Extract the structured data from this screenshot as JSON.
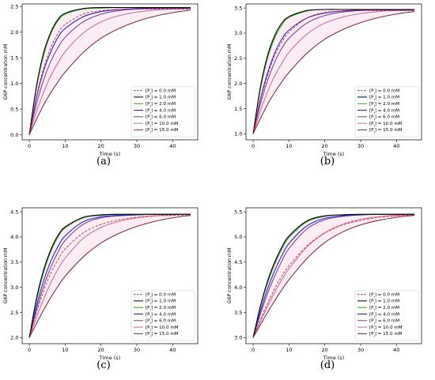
{
  "chart_data": [
    {
      "panel": "(a)",
      "type": "line",
      "xlabel": "Time (s)",
      "ylabel": "G6P concentration mM",
      "xlim": [
        -2,
        47
      ],
      "ylim": [
        -0.1,
        2.55
      ],
      "xticks": [
        0,
        10,
        20,
        30,
        40
      ],
      "yticks": [
        0.0,
        0.5,
        1.0,
        1.5,
        2.0,
        2.5
      ],
      "ytick_labels": [
        "0.0",
        "0.5",
        "1.0",
        "1.5",
        "2.0",
        "2.5"
      ],
      "legend_position": "lower-right",
      "series": [
        {
          "name": "[P_i] = 0.0 mM",
          "color": "#d62728",
          "dash": true,
          "x": [
            0,
            2,
            4,
            6,
            8,
            10,
            15,
            20,
            25,
            30,
            35,
            40,
            45
          ],
          "y": [
            0.0,
            0.75,
            1.3,
            1.7,
            1.98,
            2.15,
            2.35,
            2.42,
            2.44,
            2.45,
            2.45,
            2.45,
            2.45
          ]
        },
        {
          "name": "[P_i] = 1.0 mM",
          "color": "#000000",
          "dash": false,
          "x": [
            0,
            2,
            4,
            6,
            8,
            10,
            15,
            20,
            25,
            30,
            35,
            40,
            45
          ],
          "y": [
            0.0,
            0.95,
            1.6,
            2.0,
            2.25,
            2.37,
            2.46,
            2.48,
            2.48,
            2.48,
            2.48,
            2.48,
            2.48
          ]
        },
        {
          "name": "[P_i] = 2.0 mM",
          "color": "#2ca02c",
          "dash": false,
          "x": [
            0,
            2,
            4,
            6,
            8,
            10,
            15,
            20,
            25,
            30,
            35,
            40,
            45
          ],
          "y": [
            0.0,
            0.92,
            1.55,
            1.97,
            2.22,
            2.35,
            2.45,
            2.47,
            2.48,
            2.48,
            2.48,
            2.48,
            2.48
          ]
        },
        {
          "name": "[P_i] = 4.0 mM",
          "color": "#1f1fd6",
          "dash": false,
          "x": [
            0,
            2,
            4,
            6,
            8,
            10,
            15,
            20,
            25,
            30,
            35,
            40,
            45
          ],
          "y": [
            0.0,
            0.72,
            1.25,
            1.62,
            1.9,
            2.07,
            2.3,
            2.4,
            2.44,
            2.46,
            2.47,
            2.47,
            2.47
          ]
        },
        {
          "name": "[P_i] = 6.0 mM",
          "color": "#7b3fa0",
          "dash": false,
          "x": [
            0,
            2,
            4,
            6,
            8,
            10,
            15,
            20,
            25,
            30,
            35,
            40,
            45
          ],
          "y": [
            0.0,
            0.6,
            1.07,
            1.43,
            1.7,
            1.9,
            2.2,
            2.35,
            2.42,
            2.45,
            2.46,
            2.47,
            2.47
          ]
        },
        {
          "name": "[P_i] = 10.0 mM",
          "color": "#d06a9a",
          "dash": false,
          "x": [
            0,
            2,
            4,
            6,
            8,
            10,
            15,
            20,
            25,
            30,
            35,
            40,
            45
          ],
          "y": [
            0.0,
            0.45,
            0.83,
            1.15,
            1.4,
            1.62,
            1.98,
            2.2,
            2.32,
            2.39,
            2.43,
            2.45,
            2.46
          ]
        },
        {
          "name": "[P_i] = 15.0 mM",
          "color": "#8b2a3a",
          "dash": false,
          "x": [
            0,
            2,
            4,
            6,
            8,
            10,
            15,
            20,
            25,
            30,
            35,
            40,
            45
          ],
          "y": [
            0.0,
            0.3,
            0.58,
            0.82,
            1.03,
            1.22,
            1.6,
            1.88,
            2.07,
            2.21,
            2.31,
            2.38,
            2.43
          ]
        }
      ]
    },
    {
      "panel": "(b)",
      "type": "line",
      "xlabel": "Time (s)",
      "ylabel": "G6P concentration mM",
      "xlim": [
        -2,
        47
      ],
      "ylim": [
        0.88,
        3.58
      ],
      "xticks": [
        0,
        10,
        20,
        30,
        40
      ],
      "yticks": [
        1.0,
        1.5,
        2.0,
        2.5,
        3.0,
        3.5
      ],
      "ytick_labels": [
        "1.0",
        "1.5",
        "2.0",
        "2.5",
        "3.0",
        "3.5"
      ],
      "legend_position": "lower-right",
      "series": [
        {
          "name": "[P_i] = 0.0 mM",
          "color": "#d62728",
          "dash": true,
          "x": [
            0,
            2,
            4,
            6,
            8,
            10,
            15,
            20,
            25,
            30,
            35,
            40,
            45
          ],
          "y": [
            1.0,
            1.65,
            2.15,
            2.55,
            2.82,
            3.02,
            3.3,
            3.41,
            3.44,
            3.45,
            3.45,
            3.45,
            3.45
          ]
        },
        {
          "name": "[P_i] = 1.0 mM",
          "color": "#000000",
          "dash": false,
          "x": [
            0,
            2,
            4,
            6,
            8,
            10,
            15,
            20,
            25,
            30,
            35,
            40,
            45
          ],
          "y": [
            1.0,
            1.92,
            2.55,
            2.95,
            3.2,
            3.33,
            3.45,
            3.47,
            3.47,
            3.47,
            3.47,
            3.47,
            3.47
          ]
        },
        {
          "name": "[P_i] = 2.0 mM",
          "color": "#2ca02c",
          "dash": false,
          "x": [
            0,
            2,
            4,
            6,
            8,
            10,
            15,
            20,
            25,
            30,
            35,
            40,
            45
          ],
          "y": [
            1.0,
            1.88,
            2.5,
            2.9,
            3.16,
            3.31,
            3.44,
            3.47,
            3.47,
            3.47,
            3.47,
            3.47,
            3.47
          ]
        },
        {
          "name": "[P_i] = 4.0 mM",
          "color": "#1f1fd6",
          "dash": false,
          "x": [
            0,
            2,
            4,
            6,
            8,
            10,
            15,
            20,
            25,
            30,
            35,
            40,
            45
          ],
          "y": [
            1.0,
            1.68,
            2.2,
            2.6,
            2.88,
            3.06,
            3.3,
            3.4,
            3.44,
            3.46,
            3.46,
            3.46,
            3.46
          ]
        },
        {
          "name": "[P_i] = 6.0 mM",
          "color": "#7b3fa0",
          "dash": false,
          "x": [
            0,
            2,
            4,
            6,
            8,
            10,
            15,
            20,
            25,
            30,
            35,
            40,
            45
          ],
          "y": [
            1.0,
            1.58,
            2.05,
            2.42,
            2.7,
            2.9,
            3.2,
            3.35,
            3.42,
            3.45,
            3.46,
            3.46,
            3.46
          ]
        },
        {
          "name": "[P_i] = 10.0 mM",
          "color": "#d06a9a",
          "dash": false,
          "x": [
            0,
            2,
            4,
            6,
            8,
            10,
            15,
            20,
            25,
            30,
            35,
            40,
            45
          ],
          "y": [
            1.0,
            1.45,
            1.83,
            2.15,
            2.4,
            2.62,
            2.98,
            3.2,
            3.32,
            3.39,
            3.43,
            3.45,
            3.46
          ]
        },
        {
          "name": "[P_i] = 15.0 mM",
          "color": "#8b2a3a",
          "dash": false,
          "x": [
            0,
            2,
            4,
            6,
            8,
            10,
            15,
            20,
            25,
            30,
            35,
            40,
            45
          ],
          "y": [
            1.0,
            1.3,
            1.58,
            1.82,
            2.03,
            2.22,
            2.6,
            2.88,
            3.07,
            3.21,
            3.31,
            3.38,
            3.43
          ]
        }
      ]
    },
    {
      "panel": "(c)",
      "type": "line",
      "xlabel": "Time (s)",
      "ylabel": "G6P concentration mM",
      "xlim": [
        -2,
        47
      ],
      "ylim": [
        1.88,
        4.58
      ],
      "xticks": [
        0,
        10,
        20,
        30,
        40
      ],
      "yticks": [
        2.0,
        2.5,
        3.0,
        3.5,
        4.0,
        4.5
      ],
      "ytick_labels": [
        "2.0",
        "2.5",
        "3.0",
        "3.5",
        "4.0",
        "4.5"
      ],
      "legend_position": "lower-right",
      "series": [
        {
          "name": "[P_i] = 0.0 mM",
          "color": "#d62728",
          "dash": true,
          "x": [
            0,
            2,
            4,
            6,
            8,
            10,
            15,
            20,
            25,
            30,
            35,
            40,
            45
          ],
          "y": [
            2.0,
            2.5,
            2.93,
            3.28,
            3.55,
            3.76,
            4.08,
            4.25,
            4.34,
            4.39,
            4.42,
            4.43,
            4.44
          ]
        },
        {
          "name": "[P_i] = 1.0 mM",
          "color": "#000000",
          "dash": false,
          "x": [
            0,
            2,
            4,
            6,
            8,
            10,
            15,
            20,
            25,
            30,
            35,
            40,
            45
          ],
          "y": [
            2.0,
            2.78,
            3.35,
            3.75,
            4.03,
            4.2,
            4.39,
            4.44,
            4.45,
            4.45,
            4.45,
            4.45,
            4.45
          ]
        },
        {
          "name": "[P_i] = 2.0 mM",
          "color": "#2ca02c",
          "dash": false,
          "x": [
            0,
            2,
            4,
            6,
            8,
            10,
            15,
            20,
            25,
            30,
            35,
            40,
            45
          ],
          "y": [
            2.0,
            2.74,
            3.3,
            3.71,
            4.0,
            4.18,
            4.38,
            4.43,
            4.45,
            4.45,
            4.45,
            4.45,
            4.45
          ]
        },
        {
          "name": "[P_i] = 4.0 mM",
          "color": "#1f1fd6",
          "dash": false,
          "x": [
            0,
            2,
            4,
            6,
            8,
            10,
            15,
            20,
            25,
            30,
            35,
            40,
            45
          ],
          "y": [
            2.0,
            2.63,
            3.13,
            3.52,
            3.81,
            4.02,
            4.3,
            4.4,
            4.43,
            4.44,
            4.45,
            4.45,
            4.45
          ]
        },
        {
          "name": "[P_i] = 6.0 mM",
          "color": "#7b3fa0",
          "dash": false,
          "x": [
            0,
            2,
            4,
            6,
            8,
            10,
            15,
            20,
            25,
            30,
            35,
            40,
            45
          ],
          "y": [
            2.0,
            2.55,
            3.02,
            3.4,
            3.7,
            3.93,
            4.25,
            4.38,
            4.42,
            4.44,
            4.45,
            4.45,
            4.45
          ]
        },
        {
          "name": "[P_i] = 10.0 mM",
          "color": "#d06a9a",
          "dash": false,
          "x": [
            0,
            2,
            4,
            6,
            8,
            10,
            15,
            20,
            25,
            30,
            35,
            40,
            45
          ],
          "y": [
            2.0,
            2.4,
            2.77,
            3.09,
            3.36,
            3.58,
            3.97,
            4.19,
            4.31,
            4.38,
            4.42,
            4.44,
            4.45
          ]
        },
        {
          "name": "[P_i] = 15.0 mM",
          "color": "#8b2a3a",
          "dash": false,
          "x": [
            0,
            2,
            4,
            6,
            8,
            10,
            15,
            20,
            25,
            30,
            35,
            40,
            45
          ],
          "y": [
            2.0,
            2.28,
            2.55,
            2.8,
            3.02,
            3.22,
            3.6,
            3.88,
            4.07,
            4.21,
            4.31,
            4.38,
            4.43
          ]
        }
      ]
    },
    {
      "panel": "(d)",
      "type": "line",
      "xlabel": "Time (s)",
      "ylabel": "G6P concentration mM",
      "xlim": [
        -2,
        47
      ],
      "ylim": [
        2.88,
        5.58
      ],
      "xticks": [
        0,
        10,
        20,
        30,
        40
      ],
      "yticks": [
        3.0,
        3.5,
        4.0,
        4.5,
        5.0,
        5.5
      ],
      "ytick_labels": [
        "3.0",
        "3.5",
        "4.0",
        "4.5",
        "5.0",
        "5.5"
      ],
      "legend_position": "lower-right",
      "series": [
        {
          "name": "[P_i] = 0.0 mM",
          "color": "#d62728",
          "dash": true,
          "x": [
            0,
            2,
            4,
            6,
            8,
            10,
            15,
            20,
            25,
            30,
            35,
            40,
            45
          ],
          "y": [
            3.0,
            3.35,
            3.68,
            3.97,
            4.22,
            4.43,
            4.82,
            5.08,
            5.24,
            5.33,
            5.39,
            5.42,
            5.44
          ]
        },
        {
          "name": "[P_i] = 1.0 mM",
          "color": "#000000",
          "dash": false,
          "x": [
            0,
            2,
            4,
            6,
            8,
            10,
            15,
            20,
            25,
            30,
            35,
            40,
            45
          ],
          "y": [
            3.0,
            3.62,
            4.12,
            4.5,
            4.8,
            5.02,
            5.32,
            5.42,
            5.44,
            5.45,
            5.45,
            5.45,
            5.45
          ]
        },
        {
          "name": "[P_i] = 2.0 mM",
          "color": "#2ca02c",
          "dash": false,
          "x": [
            0,
            2,
            4,
            6,
            8,
            10,
            15,
            20,
            25,
            30,
            35,
            40,
            45
          ],
          "y": [
            3.0,
            3.6,
            4.08,
            4.46,
            4.76,
            4.99,
            5.3,
            5.41,
            5.44,
            5.45,
            5.45,
            5.45,
            5.45
          ]
        },
        {
          "name": "[P_i] = 4.0 mM",
          "color": "#1f1fd6",
          "dash": false,
          "x": [
            0,
            2,
            4,
            6,
            8,
            10,
            15,
            20,
            25,
            30,
            35,
            40,
            45
          ],
          "y": [
            3.0,
            3.52,
            3.96,
            4.33,
            4.63,
            4.87,
            5.22,
            5.37,
            5.42,
            5.44,
            5.45,
            5.45,
            5.45
          ]
        },
        {
          "name": "[P_i] = 6.0 mM",
          "color": "#7b3fa0",
          "dash": false,
          "x": [
            0,
            2,
            4,
            6,
            8,
            10,
            15,
            20,
            25,
            30,
            35,
            40,
            45
          ],
          "y": [
            3.0,
            3.46,
            3.87,
            4.22,
            4.52,
            4.77,
            5.16,
            5.34,
            5.41,
            5.44,
            5.45,
            5.45,
            5.45
          ]
        },
        {
          "name": "[P_i] = 10.0 mM",
          "color": "#d06a9a",
          "dash": false,
          "x": [
            0,
            2,
            4,
            6,
            8,
            10,
            15,
            20,
            25,
            30,
            35,
            40,
            45
          ],
          "y": [
            3.0,
            3.32,
            3.62,
            3.9,
            4.15,
            4.37,
            4.8,
            5.08,
            5.25,
            5.35,
            5.4,
            5.43,
            5.44
          ]
        },
        {
          "name": "[P_i] = 15.0 mM",
          "color": "#8b2a3a",
          "dash": false,
          "x": [
            0,
            2,
            4,
            6,
            8,
            10,
            15,
            20,
            25,
            30,
            35,
            40,
            45
          ],
          "y": [
            3.0,
            3.25,
            3.5,
            3.73,
            3.95,
            4.15,
            4.57,
            4.89,
            5.1,
            5.24,
            5.33,
            5.39,
            5.43
          ]
        }
      ]
    }
  ]
}
